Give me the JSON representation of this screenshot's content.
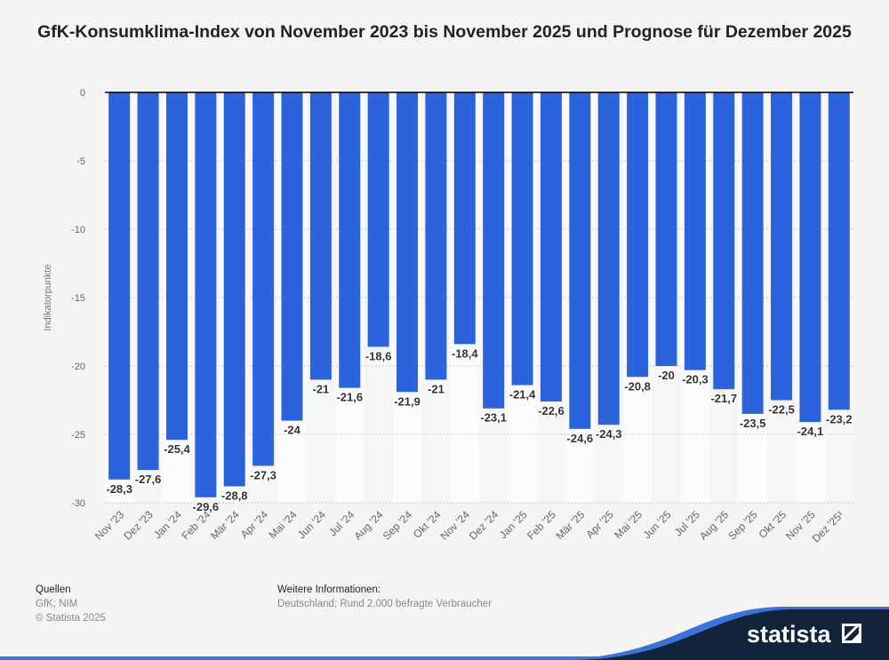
{
  "chart_data": {
    "type": "bar",
    "title": "GfK-Konsumklima-Index von November 2023 bis November 2025 und Prognose für Dezember 2025",
    "ylabel": "Indikatorpunkte",
    "xlabel": "",
    "ylim": [
      -30,
      0
    ],
    "yticks": [
      0,
      -5,
      -10,
      -15,
      -20,
      -25,
      -30
    ],
    "grid": true,
    "categories": [
      "Nov '23",
      "Dez '23",
      "Jan '24",
      "Feb '24",
      "Mär '24",
      "Apr '24",
      "Mai '24",
      "Jun '24",
      "Jul '24",
      "Aug '24",
      "Sep '24",
      "Okt '24",
      "Nov '24",
      "Dez '24",
      "Jan '25",
      "Feb '25",
      "Mär '25",
      "Apr '25",
      "Mai '25",
      "Jun '25",
      "Jul '25",
      "Aug '25",
      "Sep '25",
      "Okt '25",
      "Nov '25",
      "Dez '25¹"
    ],
    "values": [
      -28.3,
      -27.6,
      -25.4,
      -29.6,
      -28.8,
      -27.3,
      -24,
      -21,
      -21.6,
      -18.6,
      -21.9,
      -21,
      -18.4,
      -23.1,
      -21.4,
      -22.6,
      -24.6,
      -24.3,
      -20.8,
      -20,
      -20.3,
      -21.7,
      -23.5,
      -22.5,
      -24.1,
      -23.2
    ],
    "bar_color": "#2b63dd"
  },
  "footer": {
    "sources_heading": "Quellen",
    "sources": "GfK; NIM",
    "copyright": "© Statista 2025",
    "info_heading": "Weitere Informationen:",
    "info": "Deutschland; Rund 2.000 befragte Verbraucher"
  },
  "logo": {
    "text": "statista"
  }
}
